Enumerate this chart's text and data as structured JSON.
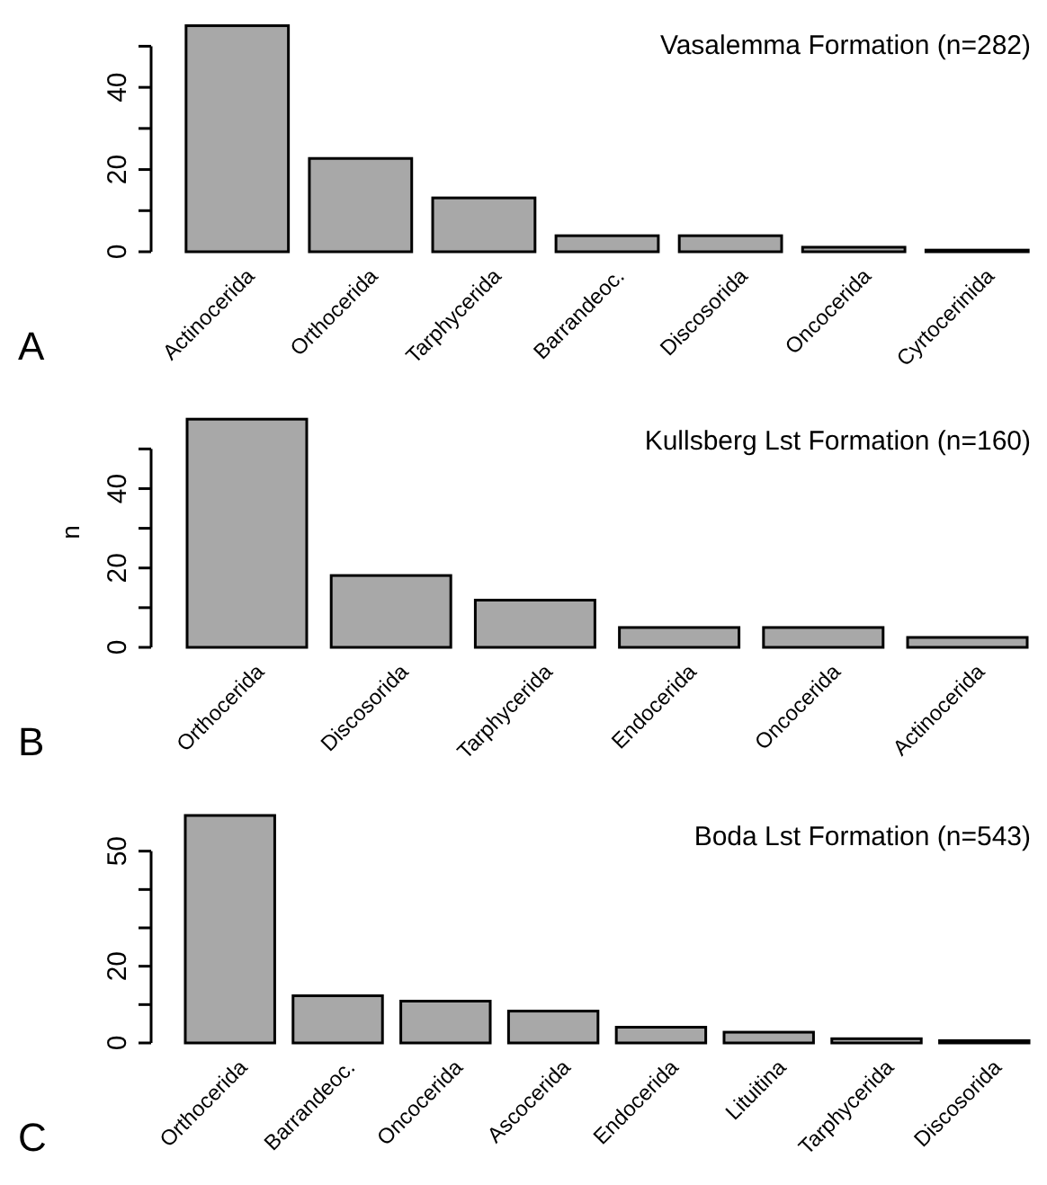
{
  "chart_data": [
    {
      "type": "bar",
      "title": "Vasalemma Formation (n=282)",
      "categories": [
        "Actinocerida",
        "Orthocerida",
        "Tarphycerida",
        "Barrandeoc.",
        "Discosorida",
        "Oncocerida",
        "Cyrtocerinida"
      ],
      "values": [
        55.0,
        22.7,
        13.1,
        3.9,
        3.9,
        1.1,
        0.4
      ],
      "color": "#a8a8a8",
      "ylim": [
        0,
        56
      ],
      "yticks": [
        0,
        {
          "value": 10,
          "label": null
        },
        20,
        {
          "value": 30,
          "label": null
        },
        40,
        {
          "value": 50,
          "label": null
        }
      ],
      "annotations": [
        "A"
      ]
    },
    {
      "type": "bar",
      "title": "Kullsberg Lst Formation (n=160)",
      "ylabel": "n",
      "categories": [
        "Orthocerida",
        "Discosorida",
        "Tarphycerida",
        "Endocerida",
        "Oncocerida",
        "Actinocerida"
      ],
      "values": [
        57.5,
        18.1,
        11.9,
        5.0,
        5.0,
        2.5
      ],
      "color": "#a8a8a8",
      "ylim": [
        0,
        58
      ],
      "yticks": [
        0,
        {
          "value": 10,
          "label": null
        },
        20,
        {
          "value": 30,
          "label": null
        },
        40,
        {
          "value": 50,
          "label": null
        }
      ],
      "annotations": [
        "B"
      ]
    },
    {
      "type": "bar",
      "title": "Boda Lst Formation (n=543)",
      "categories": [
        "Orthocerida",
        "Barrandeoc.",
        "Oncocerida",
        "Ascocerida",
        "Endocerida",
        "Lituitina",
        "Tarphycerida",
        "Discosorida"
      ],
      "values": [
        59.3,
        12.3,
        10.9,
        8.3,
        4.1,
        2.8,
        1.1,
        0.6
      ],
      "color": "#a8a8a8",
      "ylim": [
        0,
        60
      ],
      "yticks": [
        0,
        {
          "value": 10,
          "label": null
        },
        20,
        {
          "value": 30,
          "label": null
        },
        {
          "value": 40,
          "label": null
        },
        50
      ],
      "annotations": [
        "C"
      ]
    }
  ]
}
